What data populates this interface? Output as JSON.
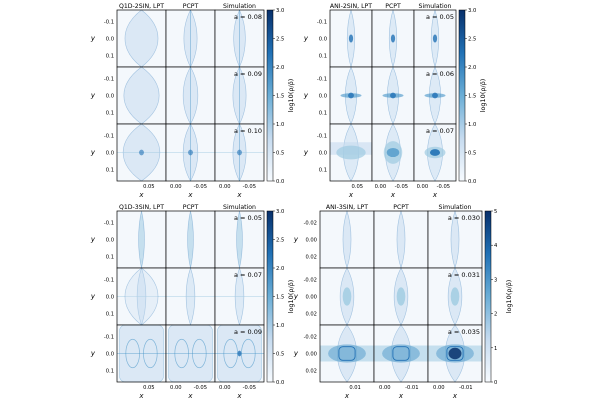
{
  "chart_data": [
    {
      "type": "heatmap",
      "id": "q1d2",
      "column_titles": [
        "Q1D-2SIN, LPT",
        "PCPT",
        "Simulation"
      ],
      "ylabel": "y",
      "xlabel": "x",
      "yticks": [
        "-0.1",
        "0.0",
        "0.1"
      ],
      "xticks_col1": "0.05",
      "xticks_col23": [
        "0.00",
        "-0.05"
      ],
      "rows": [
        {
          "a_label": "a = 0.08",
          "a": 0.08
        },
        {
          "a_label": "a = 0.09",
          "a": 0.09
        },
        {
          "a_label": "a = 0.10",
          "a": 0.1
        }
      ],
      "colorbar": {
        "label": "log10(ρ/ρ̄)",
        "ticks": [
          "0.0",
          "0.5",
          "1.0",
          "1.5",
          "2.0",
          "2.5",
          "3.0"
        ],
        "range": [
          0,
          3
        ]
      }
    },
    {
      "type": "heatmap",
      "id": "ani2",
      "column_titles": [
        "ANI-2SIN, LPT",
        "PCPT",
        "Simulation"
      ],
      "ylabel": "y",
      "xlabel": "x",
      "yticks": [
        "-0.1",
        "0.0",
        "0.1"
      ],
      "xticks_col1": "0.05",
      "xticks_col23": [
        "0.00",
        "-0.05"
      ],
      "rows": [
        {
          "a_label": "a = 0.05",
          "a": 0.05
        },
        {
          "a_label": "a = 0.06",
          "a": 0.06
        },
        {
          "a_label": "a = 0.07",
          "a": 0.07
        }
      ],
      "colorbar": {
        "label": "log10(ρ/ρ̄)",
        "ticks": [
          "0.0",
          "0.5",
          "1.0",
          "1.5",
          "2.0",
          "2.5",
          "3.0"
        ],
        "range": [
          0,
          3
        ]
      }
    },
    {
      "type": "heatmap",
      "id": "q1d3",
      "column_titles": [
        "Q1D-3SIN, LPT",
        "PCPT",
        "Simulation"
      ],
      "ylabel": "y",
      "xlabel": "x",
      "yticks": [
        "-0.1",
        "0.0",
        "0.1"
      ],
      "xticks_col1": "0.05",
      "xticks_col23": [
        "0.00",
        "-0.05"
      ],
      "rows": [
        {
          "a_label": "a = 0.05",
          "a": 0.05
        },
        {
          "a_label": "a = 0.07",
          "a": 0.07
        },
        {
          "a_label": "a = 0.09",
          "a": 0.09
        }
      ],
      "colorbar": {
        "label": "log10(ρ/ρ̄)",
        "ticks": [
          "0.0",
          "0.5",
          "1.0",
          "1.5",
          "2.0",
          "2.5",
          "3.0"
        ],
        "range": [
          0,
          3
        ]
      }
    },
    {
      "type": "heatmap",
      "id": "ani3",
      "column_titles": [
        "ANI-3SIN, LPT",
        "PCPT",
        "Simulation"
      ],
      "ylabel": "y",
      "xlabel": "x",
      "yticks": [
        "-0.02",
        "0.00",
        "0.02"
      ],
      "xticks_col1": "0.01",
      "xticks_col23": [
        "0.00",
        "-0.01"
      ],
      "rows": [
        {
          "a_label": "a = 0.030",
          "a": 0.03
        },
        {
          "a_label": "a = 0.031",
          "a": 0.031
        },
        {
          "a_label": "a = 0.035",
          "a": 0.035
        }
      ],
      "colorbar": {
        "label": "log10(ρ/ρ̄)",
        "ticks": [
          "0",
          "1",
          "2",
          "3",
          "4",
          "5"
        ],
        "range": [
          0,
          5
        ]
      }
    }
  ]
}
